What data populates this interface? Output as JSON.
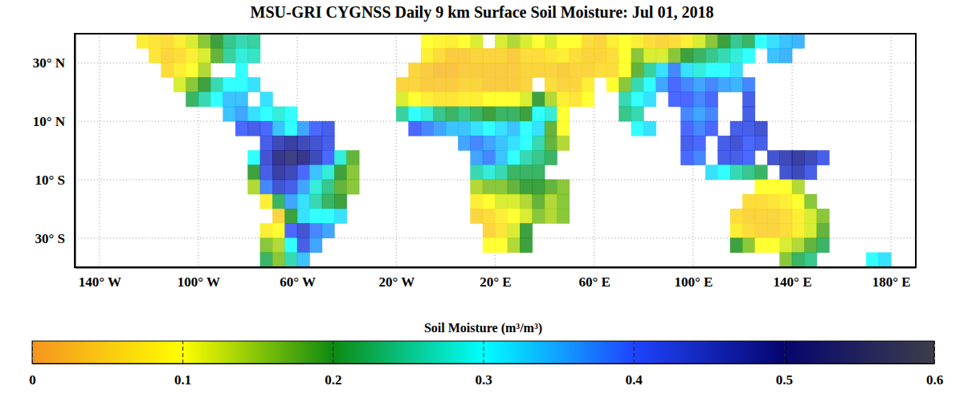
{
  "chart_data": {
    "type": "heatmap",
    "title": "MSU-GRI CYGNSS Daily 9 km Surface Soil Moisture: Jul 01, 2018",
    "x": [
      -147.5,
      -142.5,
      -137.5,
      -132.5,
      -127.5,
      -122.5,
      -117.5,
      -112.5,
      -107.5,
      -102.5,
      -97.5,
      -92.5,
      -87.5,
      -82.5,
      -77.5,
      -72.5,
      -67.5,
      -62.5,
      -57.5,
      -52.5,
      -47.5,
      -42.5,
      -37.5,
      -32.5,
      -27.5,
      -22.5,
      -17.5,
      -12.5,
      -7.5,
      -2.5,
      2.5,
      7.5,
      12.5,
      17.5,
      22.5,
      27.5,
      32.5,
      37.5,
      42.5,
      47.5,
      52.5,
      57.5,
      62.5,
      67.5,
      72.5,
      77.5,
      82.5,
      87.5,
      92.5,
      97.5,
      102.5,
      107.5,
      112.5,
      117.5,
      122.5,
      127.5,
      132.5,
      137.5,
      142.5,
      147.5,
      152.5,
      157.5,
      162.5,
      167.5,
      172.5,
      177.5,
      182.5,
      187.5
    ],
    "y": [
      37.5,
      32.5,
      27.5,
      22.5,
      17.5,
      12.5,
      7.5,
      2.5,
      -2.5,
      -7.5,
      -12.5,
      -17.5,
      -22.5,
      -27.5,
      -32.5,
      -37.5
    ],
    "values": [
      [
        null,
        null,
        null,
        null,
        null,
        0.08,
        0.07,
        0.06,
        0.08,
        0.12,
        0.16,
        0.2,
        0.24,
        0.26,
        0.25,
        null,
        null,
        null,
        null,
        null,
        null,
        null,
        null,
        null,
        null,
        null,
        null,
        null,
        0.1,
        0.09,
        0.08,
        0.1,
        0.12,
        null,
        0.12,
        0.14,
        0.12,
        0.1,
        0.12,
        0.1,
        0.1,
        0.06,
        0.05,
        0.08,
        0.1,
        0.08,
        0.06,
        0.05,
        0.06,
        0.08,
        0.12,
        0.16,
        0.2,
        0.24,
        0.22,
        0.3,
        0.32,
        0.34,
        0.35,
        null,
        null,
        null,
        null,
        null,
        null,
        null,
        null,
        null
      ],
      [
        null,
        null,
        null,
        null,
        null,
        null,
        0.07,
        0.05,
        0.06,
        0.08,
        0.12,
        0.18,
        0.25,
        0.28,
        0.27,
        null,
        null,
        null,
        null,
        null,
        null,
        null,
        null,
        null,
        null,
        null,
        null,
        null,
        0.08,
        0.06,
        0.04,
        0.04,
        0.05,
        0.05,
        0.05,
        0.04,
        0.06,
        0.06,
        0.07,
        0.08,
        0.06,
        0.05,
        0.05,
        0.06,
        0.1,
        0.16,
        0.12,
        0.12,
        0.16,
        0.2,
        0.22,
        0.24,
        0.26,
        0.28,
        0.3,
        null,
        0.34,
        0.35,
        null,
        null,
        null,
        null,
        null,
        null,
        null,
        null,
        null,
        null
      ],
      [
        null,
        null,
        null,
        null,
        null,
        null,
        null,
        0.06,
        0.08,
        0.1,
        0.14,
        null,
        null,
        0.3,
        null,
        null,
        null,
        null,
        null,
        null,
        null,
        null,
        null,
        null,
        null,
        null,
        null,
        0.05,
        0.04,
        0.03,
        0.03,
        0.04,
        0.04,
        0.04,
        0.04,
        0.04,
        0.05,
        0.05,
        0.05,
        0.04,
        0.05,
        0.05,
        0.06,
        0.06,
        0.1,
        0.18,
        0.25,
        0.32,
        0.38,
        0.32,
        0.28,
        0.3,
        0.3,
        0.32,
        null,
        null,
        null,
        null,
        null,
        null,
        null,
        null,
        null,
        null,
        null,
        null,
        null,
        null
      ],
      [
        null,
        null,
        null,
        null,
        null,
        null,
        null,
        null,
        0.12,
        0.16,
        0.2,
        0.26,
        0.3,
        0.3,
        0.32,
        null,
        null,
        null,
        null,
        null,
        null,
        null,
        null,
        null,
        null,
        null,
        0.05,
        0.05,
        0.04,
        0.04,
        0.04,
        0.05,
        0.05,
        0.04,
        0.04,
        0.04,
        0.05,
        null,
        0.06,
        0.05,
        0.05,
        0.08,
        null,
        0.1,
        0.16,
        0.26,
        0.3,
        0.36,
        0.4,
        0.38,
        0.36,
        0.38,
        0.36,
        0.35,
        0.38,
        null,
        null,
        null,
        null,
        null,
        null,
        null,
        null,
        null,
        null,
        null,
        null,
        null
      ],
      [
        null,
        null,
        null,
        null,
        null,
        null,
        null,
        null,
        null,
        0.22,
        0.26,
        0.3,
        0.34,
        0.34,
        null,
        0.32,
        null,
        null,
        null,
        null,
        null,
        null,
        null,
        null,
        null,
        null,
        0.12,
        0.1,
        0.08,
        0.07,
        0.07,
        0.08,
        0.08,
        0.1,
        0.1,
        0.1,
        0.12,
        0.2,
        0.14,
        0.08,
        0.07,
        0.1,
        null,
        null,
        0.26,
        0.3,
        0.32,
        null,
        0.4,
        0.4,
        0.38,
        0.4,
        null,
        null,
        0.42,
        null,
        null,
        null,
        null,
        null,
        null,
        null,
        null,
        null,
        null,
        null,
        null,
        null
      ],
      [
        null,
        null,
        null,
        null,
        null,
        null,
        null,
        null,
        null,
        null,
        null,
        null,
        0.34,
        0.36,
        0.32,
        0.3,
        0.28,
        0.3,
        null,
        null,
        null,
        null,
        null,
        null,
        null,
        null,
        0.25,
        0.3,
        0.28,
        0.24,
        0.22,
        0.24,
        0.22,
        0.2,
        0.22,
        0.22,
        0.2,
        0.3,
        0.28,
        0.1,
        null,
        null,
        null,
        null,
        0.24,
        0.26,
        null,
        null,
        null,
        0.38,
        0.36,
        0.38,
        null,
        null,
        0.42,
        null,
        null,
        null,
        null,
        null,
        null,
        null,
        null,
        null,
        null,
        null,
        null,
        null
      ],
      [
        null,
        null,
        null,
        null,
        null,
        null,
        null,
        null,
        null,
        null,
        null,
        null,
        null,
        0.4,
        0.42,
        0.4,
        0.34,
        0.3,
        0.36,
        0.4,
        0.42,
        null,
        null,
        null,
        null,
        null,
        null,
        0.4,
        0.38,
        0.36,
        0.34,
        0.34,
        0.32,
        0.3,
        0.32,
        0.34,
        0.3,
        0.32,
        0.18,
        0.1,
        null,
        null,
        null,
        null,
        null,
        0.3,
        0.32,
        null,
        null,
        0.4,
        0.38,
        0.4,
        null,
        0.42,
        0.42,
        0.44,
        null,
        null,
        null,
        null,
        null,
        null,
        null,
        null,
        null,
        null,
        null,
        null
      ],
      [
        null,
        null,
        null,
        null,
        null,
        null,
        null,
        null,
        null,
        null,
        null,
        null,
        null,
        null,
        null,
        0.42,
        0.46,
        0.48,
        0.46,
        0.44,
        0.42,
        null,
        null,
        null,
        null,
        null,
        null,
        null,
        null,
        null,
        null,
        0.36,
        0.38,
        0.36,
        0.34,
        0.32,
        0.3,
        0.26,
        0.18,
        0.14,
        null,
        null,
        null,
        null,
        null,
        null,
        null,
        null,
        null,
        0.42,
        0.4,
        null,
        0.42,
        0.44,
        0.4,
        0.42,
        null,
        null,
        null,
        null,
        null,
        null,
        null,
        null,
        null,
        null,
        null,
        null
      ],
      [
        null,
        null,
        null,
        null,
        null,
        null,
        null,
        null,
        null,
        null,
        null,
        null,
        null,
        null,
        0.3,
        0.44,
        0.5,
        0.52,
        0.5,
        0.46,
        0.4,
        0.28,
        0.18,
        null,
        null,
        null,
        null,
        null,
        null,
        null,
        null,
        null,
        0.36,
        0.38,
        0.34,
        0.3,
        0.26,
        0.24,
        0.22,
        null,
        null,
        null,
        null,
        null,
        null,
        null,
        null,
        null,
        null,
        0.4,
        0.38,
        null,
        0.42,
        0.42,
        0.4,
        null,
        0.44,
        0.46,
        0.48,
        0.46,
        0.42,
        null,
        null,
        null,
        null,
        null,
        null,
        null
      ],
      [
        null,
        null,
        null,
        null,
        null,
        null,
        null,
        null,
        null,
        null,
        null,
        null,
        null,
        null,
        0.2,
        0.42,
        0.48,
        0.46,
        0.4,
        0.34,
        0.28,
        0.2,
        0.16,
        null,
        null,
        null,
        null,
        null,
        null,
        null,
        null,
        null,
        0.26,
        0.28,
        0.26,
        0.22,
        0.22,
        0.22,
        null,
        null,
        null,
        null,
        null,
        null,
        null,
        null,
        null,
        null,
        null,
        null,
        null,
        0.32,
        0.3,
        0.26,
        0.24,
        0.22,
        null,
        0.44,
        0.46,
        0.42,
        null,
        null,
        null,
        null,
        null,
        null,
        null,
        null
      ],
      [
        null,
        null,
        null,
        null,
        null,
        null,
        null,
        null,
        null,
        null,
        null,
        null,
        null,
        null,
        0.14,
        0.38,
        0.44,
        0.42,
        0.36,
        0.28,
        0.24,
        0.18,
        0.16,
        null,
        null,
        null,
        null,
        null,
        null,
        null,
        null,
        null,
        0.14,
        0.16,
        0.16,
        0.18,
        0.2,
        0.2,
        0.18,
        0.16,
        null,
        null,
        null,
        null,
        null,
        null,
        null,
        null,
        null,
        null,
        null,
        null,
        null,
        null,
        null,
        0.1,
        0.1,
        0.1,
        0.14,
        null,
        null,
        null,
        null,
        null,
        null,
        null,
        null,
        null
      ],
      [
        null,
        null,
        null,
        null,
        null,
        null,
        null,
        null,
        null,
        null,
        null,
        null,
        null,
        null,
        null,
        0.08,
        0.22,
        0.36,
        0.32,
        0.26,
        0.22,
        0.2,
        null,
        null,
        null,
        null,
        null,
        null,
        null,
        null,
        null,
        null,
        0.08,
        0.1,
        0.12,
        0.12,
        0.14,
        0.18,
        0.14,
        0.16,
        null,
        null,
        null,
        null,
        null,
        null,
        null,
        null,
        null,
        null,
        null,
        null,
        null,
        null,
        0.06,
        0.06,
        0.07,
        0.08,
        0.1,
        0.16,
        null,
        null,
        null,
        null,
        null,
        null,
        null,
        null
      ],
      [
        null,
        null,
        null,
        null,
        null,
        null,
        null,
        null,
        null,
        null,
        null,
        null,
        null,
        null,
        null,
        null,
        0.05,
        0.2,
        0.32,
        0.3,
        0.3,
        0.32,
        null,
        null,
        null,
        null,
        null,
        null,
        null,
        null,
        null,
        null,
        0.05,
        0.06,
        0.08,
        0.1,
        0.12,
        0.16,
        0.14,
        0.16,
        null,
        null,
        null,
        null,
        null,
        null,
        null,
        null,
        null,
        null,
        null,
        null,
        null,
        0.06,
        0.05,
        0.05,
        0.05,
        0.06,
        0.08,
        0.12,
        0.16,
        null,
        null,
        null,
        null,
        null,
        null,
        null
      ],
      [
        null,
        null,
        null,
        null,
        null,
        null,
        null,
        null,
        null,
        null,
        null,
        null,
        null,
        null,
        null,
        0.08,
        0.1,
        0.4,
        0.44,
        0.38,
        0.36,
        null,
        null,
        null,
        null,
        null,
        null,
        null,
        null,
        null,
        null,
        null,
        null,
        0.05,
        0.07,
        0.12,
        0.2,
        null,
        null,
        null,
        null,
        null,
        null,
        null,
        null,
        null,
        null,
        null,
        null,
        null,
        null,
        null,
        null,
        0.08,
        0.06,
        0.05,
        0.05,
        0.06,
        0.08,
        0.12,
        0.18,
        null,
        null,
        null,
        null,
        null,
        null,
        null
      ],
      [
        null,
        null,
        null,
        null,
        null,
        null,
        null,
        null,
        null,
        null,
        null,
        null,
        null,
        null,
        null,
        0.16,
        0.14,
        0.3,
        0.42,
        0.36,
        null,
        null,
        null,
        null,
        null,
        null,
        null,
        null,
        null,
        null,
        null,
        null,
        null,
        0.1,
        0.1,
        0.14,
        0.2,
        null,
        null,
        null,
        null,
        null,
        null,
        null,
        null,
        null,
        null,
        null,
        null,
        null,
        null,
        null,
        null,
        0.2,
        0.16,
        0.1,
        0.1,
        0.12,
        0.14,
        0.18,
        0.22,
        null,
        null,
        null,
        null,
        null,
        null,
        null
      ],
      [
        null,
        null,
        null,
        null,
        null,
        null,
        null,
        null,
        null,
        null,
        null,
        null,
        null,
        null,
        null,
        0.22,
        0.16,
        0.26,
        0.34,
        null,
        null,
        null,
        null,
        null,
        null,
        null,
        null,
        null,
        null,
        null,
        null,
        null,
        null,
        null,
        null,
        null,
        null,
        null,
        null,
        null,
        null,
        null,
        null,
        null,
        null,
        null,
        null,
        null,
        null,
        null,
        null,
        null,
        null,
        null,
        null,
        null,
        null,
        0.16,
        0.22,
        0.24,
        null,
        null,
        null,
        null,
        0.3,
        0.32,
        null,
        null
      ]
    ],
    "xlim": [
      -150,
      190
    ],
    "ylim": [
      -40,
      40
    ],
    "xticks": [
      {
        "value": -140,
        "label": "140° W"
      },
      {
        "value": -100,
        "label": "100° W"
      },
      {
        "value": -60,
        "label": "60° W"
      },
      {
        "value": -20,
        "label": "20° W"
      },
      {
        "value": 20,
        "label": "20° E"
      },
      {
        "value": 60,
        "label": "60° E"
      },
      {
        "value": 100,
        "label": "100° E"
      },
      {
        "value": 140,
        "label": "140° E"
      },
      {
        "value": 180,
        "label": "180° E"
      }
    ],
    "yticks": [
      {
        "value": 30,
        "label": "30° N"
      },
      {
        "value": 10,
        "label": "10° N"
      },
      {
        "value": -10,
        "label": "10° S"
      },
      {
        "value": -30,
        "label": "30° S"
      }
    ],
    "grid": true,
    "colorbar": {
      "label": "Soil Moisture (m³/m³)",
      "range": [
        0,
        0.6
      ],
      "ticks": [
        0,
        0.1,
        0.2,
        0.3,
        0.4,
        0.5,
        0.6
      ]
    }
  }
}
